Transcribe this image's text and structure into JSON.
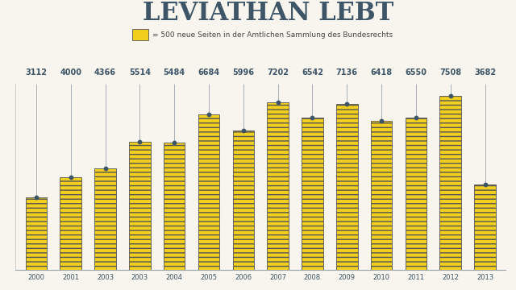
{
  "chart_data": {
    "type": "bar",
    "title": "LEVIATHAN LEBT",
    "subtitle": "= 500 neue Seiten in der Amtlichen Sammlung des Bundesrechts",
    "categories": [
      "2000",
      "2001",
      "2003",
      "2003",
      "2004",
      "2005",
      "2006",
      "2007",
      "2008",
      "2009",
      "2010",
      "2011",
      "2012",
      "2013"
    ],
    "values": [
      3112,
      4000,
      4366,
      5514,
      5484,
      6684,
      5996,
      7202,
      6542,
      7136,
      6418,
      6550,
      7508,
      3682
    ],
    "color": "#f2cf1d",
    "ylim": [
      0,
      8000
    ],
    "data_labels": true,
    "tick_labels": "x",
    "grid": false
  }
}
